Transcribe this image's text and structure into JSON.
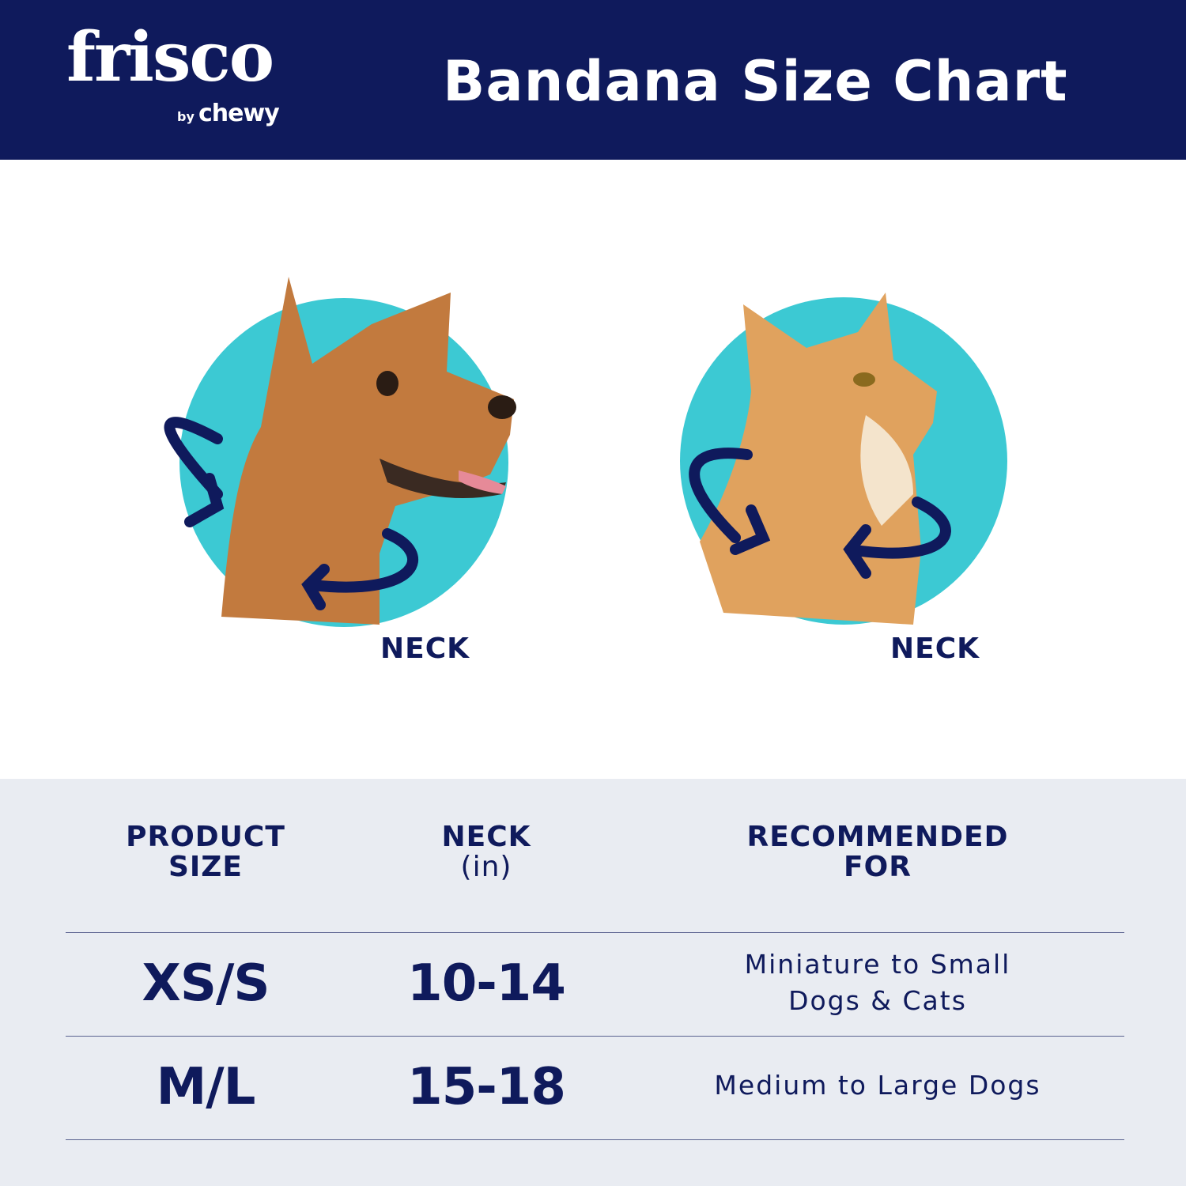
{
  "header": {
    "logo_text": "frisco",
    "logo_sub_by": "by",
    "logo_sub_brand": "chewy",
    "title": "Bandana Size Chart"
  },
  "illustrations": [
    {
      "animal": "dog",
      "label": "NECK"
    },
    {
      "animal": "cat",
      "label": "NECK"
    }
  ],
  "colors": {
    "navy": "#0f1a5c",
    "teal": "#3cc9d3",
    "table_bg": "#e9ecf2"
  },
  "table": {
    "headers": [
      {
        "line1": "PRODUCT",
        "line2": "SIZE"
      },
      {
        "line1": "NECK",
        "line2": "(in)"
      },
      {
        "line1": "RECOMMENDED",
        "line2": "FOR"
      }
    ],
    "rows": [
      {
        "size": "XS/S",
        "neck": "10-14",
        "rec_line1": "Miniature to Small",
        "rec_line2": "Dogs & Cats"
      },
      {
        "size": "M/L",
        "neck": "15-18",
        "rec_line1": "Medium to Large Dogs",
        "rec_line2": ""
      }
    ]
  }
}
